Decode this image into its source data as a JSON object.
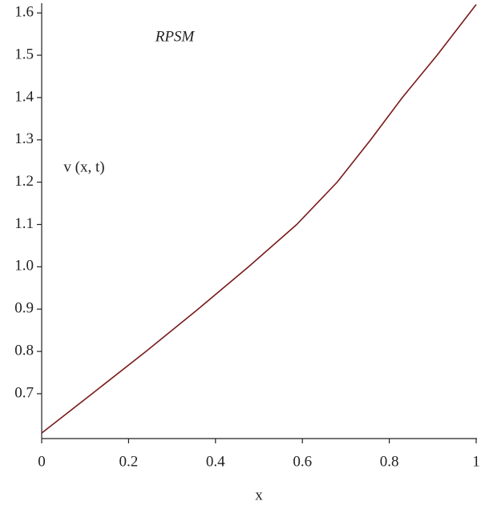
{
  "chart_data": {
    "type": "line",
    "x_label": "x",
    "annotations": [
      "RPSM",
      "v (x, t)"
    ],
    "x": [
      0,
      0.116,
      0.24,
      0.36,
      0.476,
      0.587,
      0.68,
      0.757,
      0.83,
      0.91,
      1
    ],
    "series": [
      {
        "color": "#7a1a1a",
        "values": [
          0.607,
          0.7,
          0.8,
          0.9,
          1.0,
          1.1,
          1.2,
          1.3,
          1.4,
          1.5,
          1.62
        ]
      }
    ],
    "xlim": [
      0,
      1
    ],
    "xticks": [
      0,
      0.2,
      0.4,
      0.6,
      0.8,
      1
    ],
    "ylim": [
      0.594,
      1.623
    ],
    "yticks": [
      {
        "value": 0.7,
        "label": "0.7"
      },
      {
        "value": 0.8,
        "label": "0.8"
      },
      {
        "value": 0.9,
        "label": "0.9"
      },
      {
        "value": 1,
        "label": "1.0"
      },
      {
        "value": 1.1,
        "label": "1.1"
      },
      {
        "value": 1.2,
        "label": "1.2"
      },
      {
        "value": 1.3,
        "label": "1.3"
      },
      {
        "value": 1.4,
        "label": "1.4"
      },
      {
        "value": 1.5,
        "label": "1.5"
      },
      {
        "value": 1.6,
        "label": "1.6"
      }
    ]
  }
}
